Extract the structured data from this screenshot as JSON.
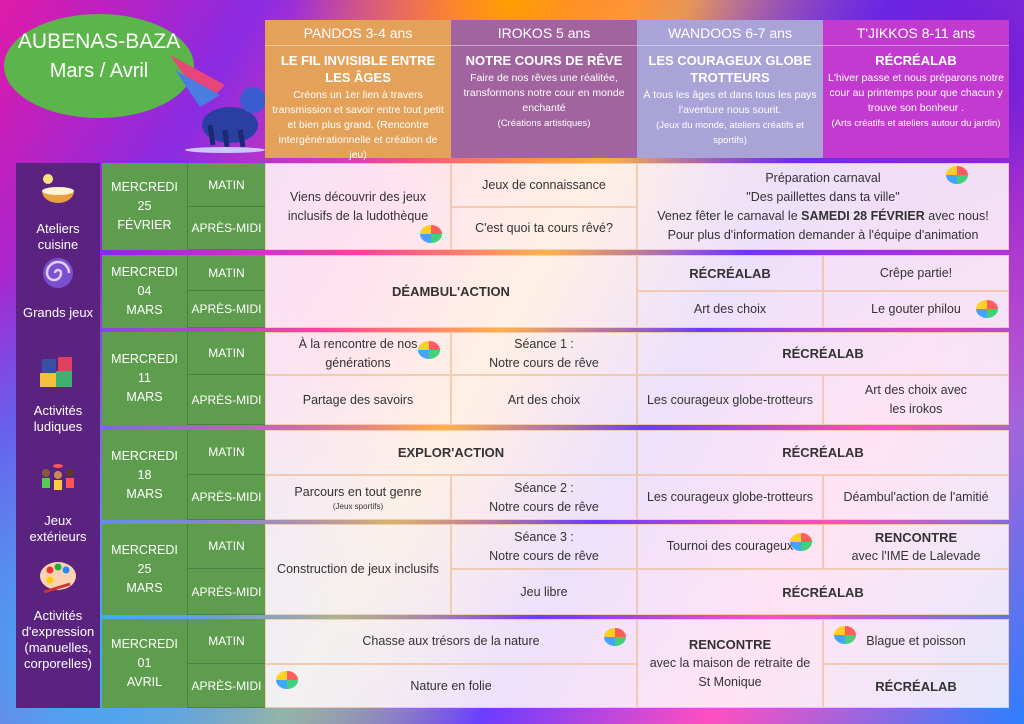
{
  "header": {
    "location": "AUBENAS-BAZA",
    "period": "Mars / Avril"
  },
  "groups": [
    {
      "name": "PANDOS 3-4 ans",
      "color": "#e3a15a",
      "theme": "LE FIL INVISIBLE ENTRE LES ÂGES",
      "desc": "Créons un 1er lien à travers transmission et savoir entre tout petit et bien plus grand. (Rencontre intergénérationnelle et création de jeu)"
    },
    {
      "name": "IROKOS 5 ans",
      "color": "#a1649e",
      "theme": "NOTRE COURS DE RÊVE",
      "desc": "Faire de nos rêves une réalitée, transformons notre cour en monde enchanté",
      "note": "(Créations artistiques)"
    },
    {
      "name": "WANDOOS 6-7 ans",
      "color": "#a9a3d8",
      "theme": "LES COURAGEUX GLOBE TROTTEURS",
      "desc": "À tous les âges et dans tous les pays l'aventure nous sourit.",
      "note": "(Jeux du monde, ateliers créatifs et sportifs)"
    },
    {
      "name": "T'JIKKOS 8-11 ans",
      "color": "#c23ad0",
      "theme": "RÉCRÉALAB",
      "desc": "L'hiver passe et nous préparons notre cour au printemps pour que chacun y trouve son bonheur .",
      "note": "(Arts créatifs et ateliers autour du jardin)"
    }
  ],
  "categories": [
    {
      "label": "Ateliers cuisine",
      "icon": "cooking-bowl-icon"
    },
    {
      "label": "Grands jeux",
      "icon": "galaxy-icon"
    },
    {
      "label": "Activités ludiques",
      "icon": "puzzle-icon"
    },
    {
      "label": "Jeux extérieurs",
      "icon": "kids-playing-icon"
    },
    {
      "label": "Activités d'expression (manuelles, corporelles)",
      "icon": "palette-icon"
    }
  ],
  "periods": {
    "morning": "MATIN",
    "afternoon": "APRÈS-MIDI"
  },
  "dates": [
    {
      "day": "MERCREDI",
      "num": "25",
      "month": "FÉVRIER"
    },
    {
      "day": "MERCREDI",
      "num": "04",
      "month": "MARS"
    },
    {
      "day": "MERCREDI",
      "num": "11",
      "month": "MARS"
    },
    {
      "day": "MERCREDI",
      "num": "18",
      "month": "MARS"
    },
    {
      "day": "MERCREDI",
      "num": "25",
      "month": "MARS"
    },
    {
      "day": "MERCREDI",
      "num": "01",
      "month": "AVRIL"
    }
  ],
  "cells": {
    "b1_pandos": {
      "text": "Viens découvrir des jeux inclusifs de la ludothèque"
    },
    "b1_irokos_am": {
      "text": "Jeux de connaissance"
    },
    "b1_irokos_pm": {
      "text": "C'est quoi ta cours rêvé?"
    },
    "b1_carnaval": {
      "l1": "Préparation carnaval",
      "l2": "\"Des paillettes dans ta ville\"",
      "l3a": "Venez fêter le carnaval le ",
      "l3b": "SAMEDI 28 FÉVRIER",
      "l3c": " avec nous!",
      "l4": "Pour plus d'information demander à l'équipe d'animation"
    },
    "b2_pi": {
      "title": "DÉAMBUL'ACTION"
    },
    "b2_w_am": {
      "title": "RÉCRÉALAB"
    },
    "b2_t_am": {
      "text": "Crêpe partie!"
    },
    "b2_w_pm": {
      "text": "Art des choix"
    },
    "b2_t_pm": {
      "text": "Le gouter philou"
    },
    "b3_p_am": {
      "text": "À la rencontre de nos générations"
    },
    "b3_i_am": {
      "text": "Séance 1 :",
      "text2": "Notre cours de rêve"
    },
    "b3_wt_am": {
      "title": "RÉCRÉALAB"
    },
    "b3_p_pm": {
      "text": "Partage des savoirs"
    },
    "b3_i_pm": {
      "text": "Art des choix"
    },
    "b3_w_pm": {
      "text": "Les courageux globe-trotteurs"
    },
    "b3_t_pm": {
      "text": "Art des choix avec",
      "text2": "les irokos"
    },
    "b4_pi_am": {
      "title": "EXPLOR'ACTION"
    },
    "b4_wt_am": {
      "title": "RÉCRÉALAB"
    },
    "b4_p_pm": {
      "text": "Parcours en tout genre",
      "small": "(Jeux sportifs)"
    },
    "b4_i_pm": {
      "text": "Séance 2 :",
      "text2": "Notre cours de rêve"
    },
    "b4_w_pm": {
      "text": "Les courageux globe-trotteurs"
    },
    "b4_t_pm": {
      "text": "Déambul'action de l'amitié"
    },
    "b5_p": {
      "text": "Construction de jeux inclusifs"
    },
    "b5_i_am": {
      "text": "Séance 3 :",
      "text2": "Notre cours de rêve"
    },
    "b5_w_am": {
      "text": "Tournoi des courageux"
    },
    "b5_t_am": {
      "title": "RENCONTRE",
      "text": "avec l'IME de Lalevade"
    },
    "b5_i_pm": {
      "text": "Jeu libre"
    },
    "b5_wt_pm": {
      "title": "RÉCRÉALAB"
    },
    "b6_pi_am": {
      "text": "Chasse aux trésors de la nature"
    },
    "b6_pi_pm": {
      "text": "Nature en folie"
    },
    "b6_w": {
      "title": "RENCONTRE",
      "text": "avec la maison de retraite de",
      "text2": "St Monique"
    },
    "b6_t_am": {
      "text": "Blague et poisson"
    },
    "b6_t_pm": {
      "title": "RÉCRÉALAB"
    }
  }
}
